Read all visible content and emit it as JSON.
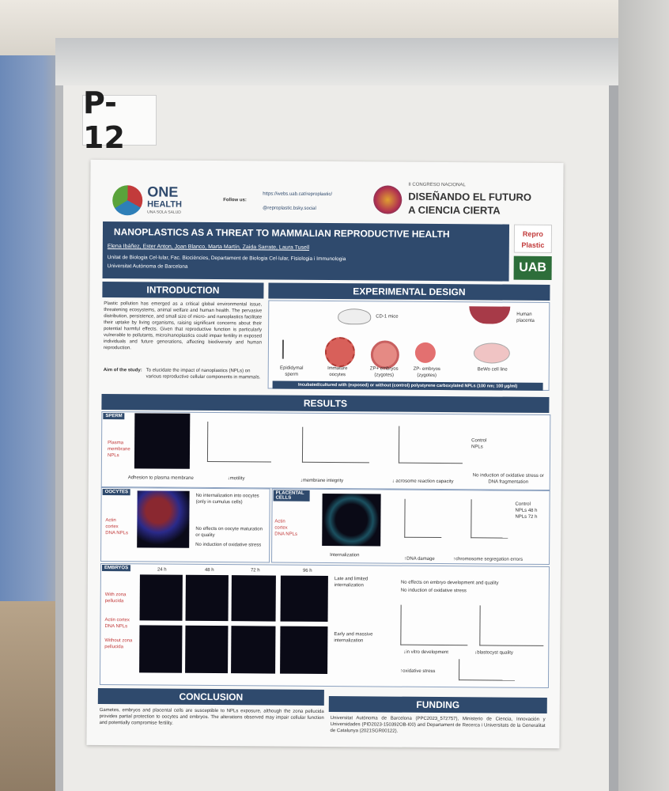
{
  "board_number": "P-12",
  "header": {
    "one_health_logo": "ONE",
    "one_health_sub": "HEALTH",
    "one_health_tagline": "UNA SOLA SALUD",
    "follow_us": "Follow us:",
    "web": "https://webs.uab.cat/reproplastic/",
    "bsky": "@reproplastic.bsky.social",
    "congress_line1": "II CONGRESO NACIONAL",
    "congress_line2": "DISEÑANDO EL FUTURO",
    "congress_line3": "A CIENCIA CIERTA"
  },
  "title": {
    "text": "NANOPLASTICS AS A THREAT TO MAMMALIAN REPRODUCTIVE HEALTH",
    "authors": "Elena Ibáñez, Ester Anton, Joan Blanco, Marta Martín, Zaida Sarrate, Laura Tusell",
    "affiliation1": "Unitat de Biologia Cel·lular, Fac. Biociències, Departament de Biologia Cel·lular, Fisiologia i Immunologia",
    "affiliation2": "Universitat Autònoma de Barcelona",
    "logo_repro": "Repro Plastic",
    "logo_uab": "UAB"
  },
  "introduction": {
    "heading": "INTRODUCTION",
    "body": "Plastic pollution has emerged as a critical global environmental issue, threatening ecosystems, animal welfare and human health. The pervasive distribution, persistence, and small size of micro- and nanoplastics facilitate their uptake by living organisms, raising significant concerns about their potential harmful effects. Given that reproductive function is particularly vulnerable to pollutants, micro/nanoplastics could impair fertility in exposed individuals and future generations, affecting biodiversity and human reproduction.",
    "aim_label": "Aim of the study:",
    "aim_text": "To elucidate the impact of nanoplastics (NPLs) on various reproductive cellular components in mammals."
  },
  "design": {
    "heading": "EXPERIMENTAL DESIGN",
    "mice": "CD-1 mice",
    "placenta": "Human placenta",
    "labels": [
      "Epididymal sperm",
      "Immature oocytes",
      "ZP+ embryos (zygotes)",
      "ZP- embryos (zygotes)",
      "BeWo cell line"
    ],
    "footer": "Incubated/cultured with (exposed) or without (control) polystyrene carboxylated NPLs (100 nm; 100 µg/ml)"
  },
  "results": {
    "heading": "RESULTS",
    "sperm_tag": "SPERM",
    "sperm_stain": "Plasma membrane NPLs",
    "sperm_notes": [
      "Adhesion to plasma membrane",
      "↓motility",
      "↓membrane integrity",
      "↓ acrosome reaction capacity",
      "No induction of oxidative stress or DNA fragmentation"
    ],
    "oocytes_tag": "OOCYTES",
    "oocytes_stain": "Actin cortex DNA NPLs",
    "oocytes_notes": [
      "No internalization into oocytes (only in cumulus cells)",
      "No effects on oocyte maturation or quality",
      "No induction of oxidative stress"
    ],
    "placental_tag": "PLACENTAL CELLS",
    "placental_stain": "Actin cortex DNA NPLs",
    "placental_notes": [
      "Internalization",
      "↑DNA damage",
      "↑chromosome segregation errors"
    ],
    "placental_legend": [
      "Control",
      "NPLs 48 h",
      "NPLs 72 h"
    ],
    "embryos_tag": "EMBRYOS",
    "embryo_times": [
      "24 h",
      "48 h",
      "72 h",
      "96 h"
    ],
    "embryo_rows": [
      "With zona pellucida",
      "Without zona pellucida"
    ],
    "embryo_stain": "Actin cortex DNA NPLs",
    "embryo_notes": [
      "Late and limited internalization",
      "No effects on embryo development and quality",
      "No induction of oxidative stress",
      "Early and massive internalization",
      "↓in vitro development",
      "↓blastocyst quality",
      "↑oxidative stress"
    ],
    "sperm_legend": [
      "Control",
      "NPLs"
    ]
  },
  "conclusion": {
    "heading": "CONCLUSION",
    "body": "Gametes, embryos and placental cells are susceptible to NPLs exposure, although the zona pellucida provides partial protection to oocytes and embryos. The alterations observed may impair cellular function and potentially compromise fertility."
  },
  "funding": {
    "heading": "FUNDING",
    "body": "Universitat Autònoma de Barcelona (PPC2023_572757), Ministerio de Ciencia, Innovación y Universidades (PID2023-150392OB-I00) and Departament de Recerca i Universitats de la Generalitat de Catalunya (2021SGR00122)."
  },
  "colors": {
    "navy": "#2f4a6d",
    "accent_red": "#c23b3b",
    "poster_bg": "#f8f8f7"
  }
}
